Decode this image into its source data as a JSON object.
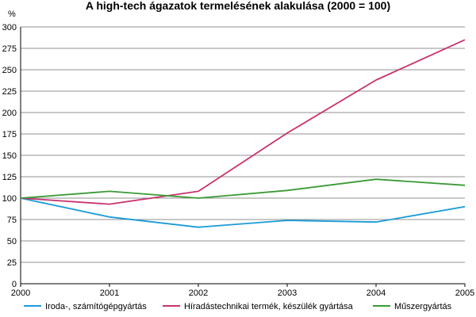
{
  "chart_data": {
    "type": "line",
    "title": "A high-tech ágazatok termelésének alakulása (2000 = 100)",
    "ylabel": "%",
    "xlabel": "",
    "x": [
      "2000",
      "2001",
      "2002",
      "2003",
      "2004",
      "2005"
    ],
    "ylim": [
      0,
      300
    ],
    "yticks": [
      0,
      25,
      50,
      75,
      100,
      125,
      150,
      175,
      200,
      225,
      250,
      275,
      300
    ],
    "grid": true,
    "legend_position": "bottom",
    "series": [
      {
        "name": "Iroda-, számítógépgyártás",
        "color": "#1a9bd7",
        "values": [
          100,
          78,
          66,
          74,
          72,
          90
        ]
      },
      {
        "name": "Híradástechnikai termék, készülék gyártása",
        "color": "#c8336e",
        "values": [
          100,
          93,
          108,
          176,
          238,
          285
        ]
      },
      {
        "name": "Műszergyártás",
        "color": "#3a9a35",
        "values": [
          100,
          108,
          100,
          109,
          122,
          115
        ]
      }
    ]
  }
}
